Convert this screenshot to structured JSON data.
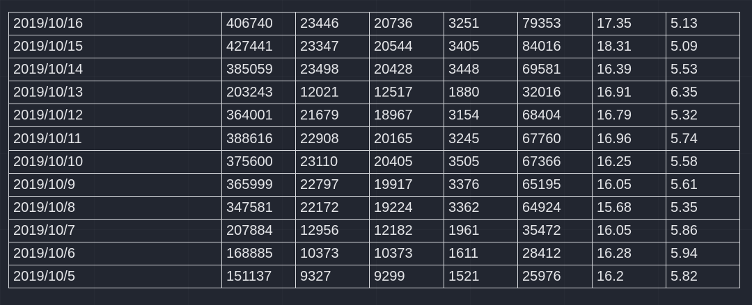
{
  "table": {
    "rows": [
      [
        "2019/10/16",
        "406740",
        "23446",
        "20736",
        "3251",
        "79353",
        "17.35",
        "5.13"
      ],
      [
        "2019/10/15",
        "427441",
        "23347",
        "20544",
        "3405",
        "84016",
        "18.31",
        "5.09"
      ],
      [
        "2019/10/14",
        "385059",
        "23498",
        "20428",
        "3448",
        "69581",
        "16.39",
        "5.53"
      ],
      [
        "2019/10/13",
        "203243",
        "12021",
        "12517",
        "1880",
        "32016",
        "16.91",
        "6.35"
      ],
      [
        "2019/10/12",
        "364001",
        "21679",
        "18967",
        "3154",
        "68404",
        "16.79",
        "5.32"
      ],
      [
        "2019/10/11",
        "388616",
        "22908",
        "20165",
        "3245",
        "67760",
        "16.96",
        "5.74"
      ],
      [
        "2019/10/10",
        "375600",
        "23110",
        "20405",
        "3505",
        "67366",
        "16.25",
        "5.58"
      ],
      [
        "2019/10/9",
        "365999",
        "22797",
        "19917",
        "3376",
        "65195",
        "16.05",
        "5.61"
      ],
      [
        "2019/10/8",
        "347581",
        "22172",
        "19224",
        "3362",
        "64924",
        "15.68",
        "5.35"
      ],
      [
        "2019/10/7",
        "207884",
        "12956",
        "12182",
        "1961",
        "35472",
        "16.05",
        "5.86"
      ],
      [
        "2019/10/6",
        "168885",
        "10373",
        "10373",
        "1611",
        "28412",
        "16.28",
        "5.94"
      ],
      [
        "2019/10/5",
        "151137",
        "9327",
        "9299",
        "1521",
        "25976",
        "16.2",
        "5.82"
      ]
    ]
  },
  "colors": {
    "background": "#222630",
    "grid_line": "#d6d8dc",
    "text": "#e4e5e8"
  }
}
